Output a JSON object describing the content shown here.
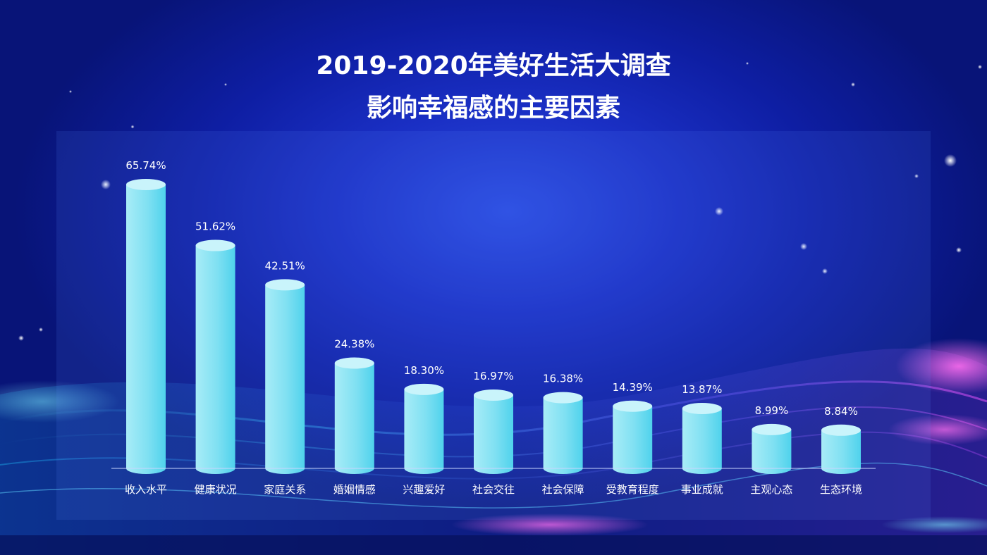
{
  "title_line1": "2019-2020年美好生活大调查",
  "title_line2": "影响幸福感的主要因素",
  "colors": {
    "bar_light": "#a8ecf7",
    "bar_dark": "#4fd2ec",
    "bar_top": "#c9f4fb",
    "axis": "#c8d6ff",
    "text": "#ffffff"
  },
  "chart_data": {
    "type": "bar",
    "categories": [
      "收入水平",
      "健康状况",
      "家庭关系",
      "婚姻情感",
      "兴趣爱好",
      "社会交往",
      "社会保障",
      "受教育程度",
      "事业成就",
      "主观心态",
      "生态环境"
    ],
    "values": [
      65.74,
      51.62,
      42.51,
      24.38,
      18.3,
      16.97,
      16.38,
      14.39,
      13.87,
      8.99,
      8.84
    ],
    "value_labels": [
      "65.74%",
      "51.62%",
      "42.51%",
      "24.38%",
      "18.30%",
      "16.97%",
      "16.38%",
      "14.39%",
      "13.87%",
      "8.99%",
      "8.84%"
    ],
    "title": "2019-2020年美好生活大调查 影响幸福感的主要因素",
    "xlabel": "",
    "ylabel": "",
    "ylim": [
      0,
      70
    ],
    "grid": false,
    "legend": "none"
  }
}
